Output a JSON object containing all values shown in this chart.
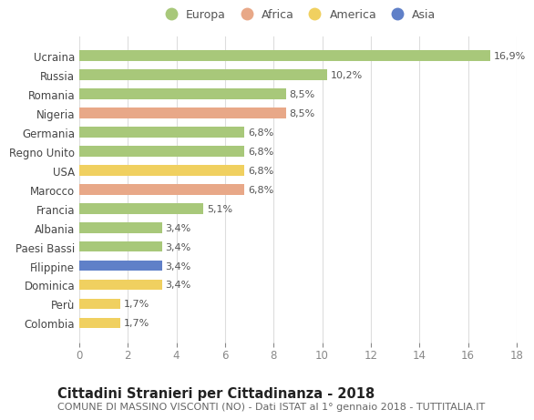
{
  "countries": [
    "Ucraina",
    "Russia",
    "Romania",
    "Nigeria",
    "Germania",
    "Regno Unito",
    "USA",
    "Marocco",
    "Francia",
    "Albania",
    "Paesi Bassi",
    "Filippine",
    "Dominica",
    "Perù",
    "Colombia"
  ],
  "values": [
    16.9,
    10.2,
    8.5,
    8.5,
    6.8,
    6.8,
    6.8,
    6.8,
    5.1,
    3.4,
    3.4,
    3.4,
    3.4,
    1.7,
    1.7
  ],
  "labels": [
    "16,9%",
    "10,2%",
    "8,5%",
    "8,5%",
    "6,8%",
    "6,8%",
    "6,8%",
    "6,8%",
    "5,1%",
    "3,4%",
    "3,4%",
    "3,4%",
    "3,4%",
    "1,7%",
    "1,7%"
  ],
  "continents": [
    "Europa",
    "Europa",
    "Europa",
    "Africa",
    "Europa",
    "Europa",
    "America",
    "Africa",
    "Europa",
    "Europa",
    "Europa",
    "Asia",
    "America",
    "America",
    "America"
  ],
  "continent_colors": {
    "Europa": "#a8c87a",
    "Africa": "#e8a888",
    "America": "#f0d060",
    "Asia": "#6080c8"
  },
  "legend_items": [
    "Europa",
    "Africa",
    "America",
    "Asia"
  ],
  "legend_colors": [
    "#a8c87a",
    "#e8a888",
    "#f0d060",
    "#6080c8"
  ],
  "xlim": [
    0,
    18
  ],
  "xticks": [
    0,
    2,
    4,
    6,
    8,
    10,
    12,
    14,
    16,
    18
  ],
  "title": "Cittadini Stranieri per Cittadinanza - 2018",
  "subtitle": "COMUNE DI MASSINO VISCONTI (NO) - Dati ISTAT al 1° gennaio 2018 - TUTTITALIA.IT",
  "background_color": "#ffffff",
  "bar_height": 0.55,
  "label_fontsize": 8,
  "ytick_fontsize": 8.5,
  "xtick_fontsize": 8.5,
  "title_fontsize": 10.5,
  "subtitle_fontsize": 8,
  "legend_fontsize": 9
}
